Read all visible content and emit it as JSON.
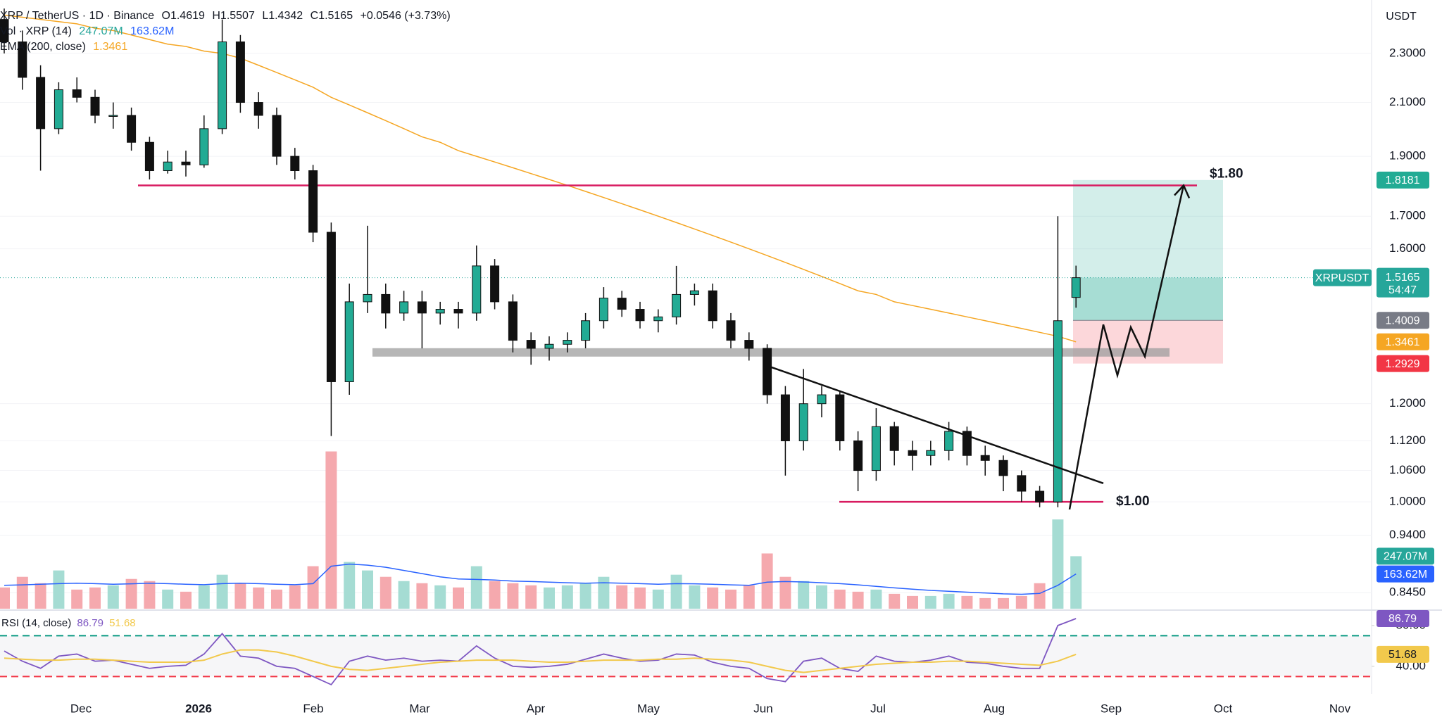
{
  "header": {
    "symbol": "XRP / TetherUS · 1D · Binance",
    "open": "O1.4619",
    "high": "H1.5507",
    "low": "L1.4342",
    "close": "C1.5165",
    "change": "+0.0546 (+3.73%)",
    "volume_label": "Vol · XRP (14)",
    "ema_label": "EMA (200, close)",
    "currency": "USDT"
  },
  "chart_data": [
    {
      "type": "candlestick",
      "log_scale": true,
      "grid": true,
      "ylim": [
        0.82,
        2.54
      ],
      "yticks": [
        {
          "value": 2.3,
          "label": "2.3000"
        },
        {
          "value": 2.1,
          "label": "2.1000"
        },
        {
          "value": 1.9,
          "label": "1.9000"
        },
        {
          "value": 1.7,
          "label": "1.7000"
        },
        {
          "value": 1.6,
          "label": "1.6000"
        },
        {
          "value": 1.2,
          "label": "1.2000"
        },
        {
          "value": 1.12,
          "label": "1.1200"
        },
        {
          "value": 1.06,
          "label": "1.0600"
        },
        {
          "value": 1.0,
          "label": "1.0000"
        },
        {
          "value": 0.94,
          "label": "0.9400"
        },
        {
          "value": 0.845,
          "label": "0.8450"
        }
      ],
      "xtick_labels": [
        "Dec",
        "2026",
        "Feb",
        "Mar",
        "Apr",
        "May",
        "Jun",
        "Jul",
        "Aug",
        "Sep",
        "Oct",
        "Nov"
      ],
      "series": [
        {
          "name": "XRPUSDT",
          "up_color": "#22ab94",
          "down_color": "#111111",
          "open": [
            2.45,
            2.35,
            2.2,
            2.0,
            2.15,
            2.12,
            2.05,
            2.05,
            1.95,
            1.85,
            1.88,
            1.87,
            2.0,
            2.35,
            2.1,
            2.05,
            1.9,
            1.85,
            1.65,
            1.25,
            1.45,
            1.47,
            1.42,
            1.45,
            1.42,
            1.43,
            1.42,
            1.55,
            1.45,
            1.35,
            1.33,
            1.34,
            1.35,
            1.4,
            1.46,
            1.43,
            1.4,
            1.41,
            1.47,
            1.48,
            1.4,
            1.35,
            1.33,
            1.22,
            1.12,
            1.2,
            1.22,
            1.12,
            1.06,
            1.15,
            1.1,
            1.09,
            1.1,
            1.14,
            1.09,
            1.08,
            1.05,
            1.02,
            1.0,
            1.4619
          ],
          "high": [
            2.5,
            2.4,
            2.25,
            2.18,
            2.2,
            2.15,
            2.1,
            2.08,
            1.97,
            1.92,
            1.92,
            2.05,
            2.45,
            2.38,
            2.14,
            2.08,
            1.93,
            1.87,
            1.68,
            1.5,
            1.67,
            1.5,
            1.48,
            1.48,
            1.45,
            1.45,
            1.61,
            1.57,
            1.47,
            1.37,
            1.36,
            1.37,
            1.42,
            1.49,
            1.48,
            1.45,
            1.43,
            1.55,
            1.5,
            1.5,
            1.42,
            1.37,
            1.34,
            1.24,
            1.28,
            1.24,
            1.23,
            1.14,
            1.19,
            1.16,
            1.12,
            1.12,
            1.16,
            1.15,
            1.11,
            1.09,
            1.06,
            1.03,
            1.7,
            1.5507
          ],
          "low": [
            2.3,
            2.15,
            1.85,
            1.98,
            2.1,
            2.02,
            2.0,
            1.92,
            1.82,
            1.84,
            1.83,
            1.86,
            1.98,
            2.06,
            2.0,
            1.87,
            1.82,
            1.62,
            1.13,
            1.22,
            1.42,
            1.38,
            1.4,
            1.33,
            1.39,
            1.38,
            1.4,
            1.43,
            1.32,
            1.29,
            1.3,
            1.32,
            1.33,
            1.38,
            1.41,
            1.38,
            1.37,
            1.39,
            1.44,
            1.38,
            1.33,
            1.3,
            1.2,
            1.05,
            1.1,
            1.17,
            1.1,
            1.02,
            1.04,
            1.07,
            1.06,
            1.07,
            1.08,
            1.07,
            1.05,
            1.02,
            1.0,
            0.99,
            0.99,
            1.4342
          ],
          "close": [
            2.35,
            2.2,
            2.0,
            2.15,
            2.12,
            2.05,
            2.05,
            1.95,
            1.85,
            1.88,
            1.87,
            2.0,
            2.35,
            2.1,
            2.05,
            1.9,
            1.85,
            1.65,
            1.25,
            1.45,
            1.47,
            1.42,
            1.45,
            1.42,
            1.43,
            1.42,
            1.55,
            1.45,
            1.35,
            1.33,
            1.34,
            1.35,
            1.4,
            1.46,
            1.43,
            1.4,
            1.41,
            1.47,
            1.48,
            1.4,
            1.35,
            1.33,
            1.22,
            1.12,
            1.2,
            1.22,
            1.12,
            1.06,
            1.15,
            1.1,
            1.09,
            1.1,
            1.14,
            1.09,
            1.08,
            1.05,
            1.02,
            1.0,
            1.4,
            1.5165
          ]
        }
      ],
      "last_price": {
        "name": "XRPUSDT",
        "value": 1.5165,
        "countdown": "54:47",
        "color": "#26a69a"
      },
      "ema": {
        "color": "#f5a623",
        "values": [
          2.47,
          2.46,
          2.45,
          2.44,
          2.43,
          2.41,
          2.4,
          2.38,
          2.36,
          2.34,
          2.33,
          2.31,
          2.3,
          2.28,
          2.25,
          2.22,
          2.19,
          2.16,
          2.12,
          2.09,
          2.06,
          2.03,
          2.0,
          1.97,
          1.95,
          1.92,
          1.9,
          1.88,
          1.86,
          1.84,
          1.82,
          1.8,
          1.78,
          1.76,
          1.74,
          1.72,
          1.7,
          1.68,
          1.66,
          1.64,
          1.62,
          1.6,
          1.58,
          1.56,
          1.54,
          1.52,
          1.5,
          1.48,
          1.47,
          1.45,
          1.44,
          1.43,
          1.42,
          1.41,
          1.4,
          1.39,
          1.38,
          1.37,
          1.36,
          1.3461
        ]
      },
      "volume": {
        "ylim": [
          0,
          1000
        ],
        "up_color": "#a5dcd3",
        "down_color": "#f5a9ae",
        "values": [
          100,
          150,
          120,
          180,
          90,
          100,
          110,
          140,
          130,
          90,
          80,
          110,
          160,
          120,
          100,
          90,
          110,
          200,
          740,
          220,
          180,
          150,
          130,
          120,
          110,
          100,
          200,
          130,
          120,
          110,
          100,
          110,
          120,
          150,
          110,
          100,
          90,
          160,
          110,
          100,
          90,
          110,
          260,
          150,
          130,
          110,
          90,
          80,
          90,
          70,
          60,
          60,
          70,
          60,
          50,
          50,
          60,
          120,
          420,
          247.07
        ],
        "ma_color": "#2962ff",
        "ma_values": [
          110,
          112,
          115,
          118,
          120,
          118,
          115,
          117,
          120,
          118,
          115,
          113,
          118,
          120,
          118,
          115,
          113,
          118,
          200,
          210,
          205,
          195,
          180,
          165,
          150,
          140,
          138,
          135,
          130,
          128,
          125,
          122,
          120,
          122,
          120,
          118,
          115,
          118,
          117,
          115,
          112,
          110,
          125,
          128,
          126,
          122,
          118,
          112,
          105,
          98,
          92,
          86,
          82,
          78,
          74,
          70,
          68,
          72,
          110,
          163.62
        ]
      },
      "volume_badges": [
        {
          "value": 247.07,
          "label": "247.07M",
          "color": "#26a69a"
        },
        {
          "value": 163.62,
          "label": "163.62M",
          "color": "#2962ff"
        }
      ],
      "position": {
        "target": 1.8181,
        "entry": 1.4009,
        "stop": 1.2929,
        "target_color": "#22ab94",
        "entry_color": "#787b86",
        "stop_color": "#f23645"
      },
      "levels": [
        {
          "label": "$1.80",
          "value": 1.8,
          "color": "#d81b60"
        },
        {
          "label": "$1.00",
          "value": 1.0,
          "color": "#d81b60"
        }
      ],
      "support_zone": 1.32,
      "trendline": [
        1.285,
        1.035
      ],
      "projection": [
        0.986,
        1.39,
        1.265,
        1.383,
        1.31,
        1.8
      ]
    },
    {
      "type": "line",
      "title": "RSI (14, close)",
      "ylim": [
        13,
        93
      ],
      "yticks": [
        {
          "value": 80,
          "label": "80.00"
        },
        {
          "value": 40,
          "label": "40.00"
        }
      ],
      "bands": [
        70,
        30
      ],
      "series": [
        {
          "color": "#7e57c2",
          "values": [
            55,
            45,
            38,
            50,
            52,
            45,
            46,
            42,
            38,
            40,
            41,
            52,
            72,
            50,
            48,
            40,
            38,
            30,
            22,
            45,
            50,
            46,
            48,
            45,
            46,
            45,
            60,
            48,
            40,
            39,
            40,
            42,
            47,
            52,
            48,
            45,
            46,
            52,
            51,
            44,
            40,
            38,
            28,
            25,
            45,
            48,
            38,
            35,
            50,
            45,
            44,
            46,
            50,
            44,
            43,
            40,
            38,
            38,
            80,
            86.79
          ]
        },
        {
          "color": "#f2c94c",
          "values": [
            48,
            47,
            46,
            46,
            47,
            47,
            46,
            45,
            44,
            44,
            44,
            46,
            52,
            56,
            56,
            54,
            50,
            45,
            40,
            37,
            36,
            38,
            40,
            42,
            44,
            45,
            46,
            46,
            46,
            45,
            44,
            44,
            45,
            46,
            46,
            46,
            47,
            47,
            48,
            47,
            46,
            44,
            40,
            36,
            34,
            36,
            38,
            40,
            42,
            43,
            44,
            44,
            45,
            45,
            44,
            43,
            42,
            41,
            45,
            51.68
          ]
        }
      ]
    }
  ]
}
